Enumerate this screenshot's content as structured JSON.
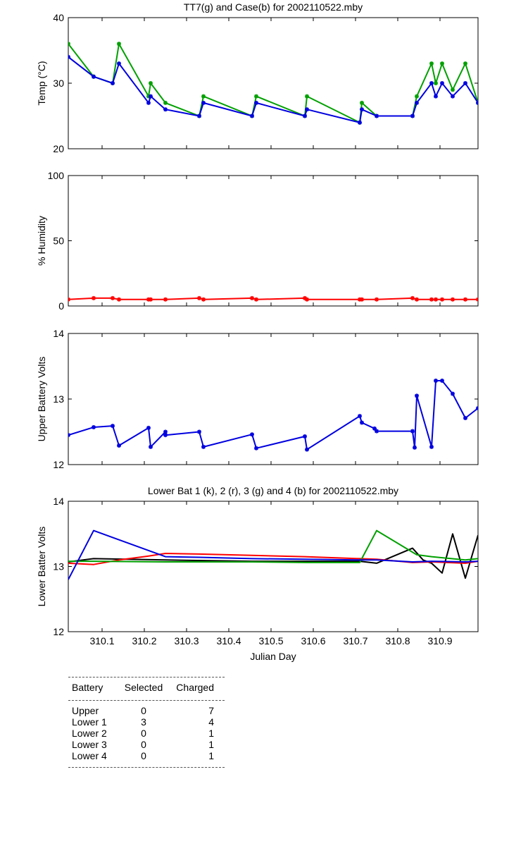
{
  "chart_data": [
    {
      "type": "line",
      "title": "TT7(g) and Case(b) for 2002110522.mby",
      "xlabel": "",
      "ylabel": "Temp  (°C)",
      "xlim": [
        310.02,
        310.99
      ],
      "ylim": [
        20,
        40
      ],
      "yticks": [
        "20",
        "30",
        "40"
      ],
      "grid": false,
      "series": [
        {
          "color": "#00a000",
          "marker": true,
          "x": [
            310.02,
            310.08,
            310.125,
            310.14,
            310.21,
            310.215,
            310.25,
            310.33,
            310.34,
            310.455,
            310.465,
            310.58,
            310.585,
            310.71,
            310.715,
            310.75,
            310.835,
            310.845,
            310.88,
            310.89,
            310.905,
            310.93,
            310.96,
            310.99
          ],
          "y": [
            36,
            31,
            30,
            36,
            28,
            30,
            27,
            25,
            28,
            25,
            28,
            25,
            28,
            24,
            27,
            25,
            25,
            28,
            33,
            30,
            33,
            29,
            33,
            27
          ]
        },
        {
          "color": "#0000e0",
          "marker": true,
          "x": [
            310.02,
            310.08,
            310.125,
            310.14,
            310.21,
            310.215,
            310.25,
            310.33,
            310.34,
            310.455,
            310.465,
            310.58,
            310.585,
            310.71,
            310.715,
            310.75,
            310.835,
            310.845,
            310.88,
            310.89,
            310.905,
            310.93,
            310.96,
            310.99
          ],
          "y": [
            34,
            31,
            30,
            33,
            27,
            28,
            26,
            25,
            27,
            25,
            27,
            25,
            26,
            24,
            26,
            25,
            25,
            27,
            30,
            28,
            30,
            28,
            30,
            27
          ]
        }
      ]
    },
    {
      "type": "line",
      "title": "",
      "xlabel": "",
      "ylabel": "% Humidity",
      "xlim": [
        310.02,
        310.99
      ],
      "ylim": [
        0,
        100
      ],
      "yticks": [
        "0",
        "50",
        "100"
      ],
      "grid": false,
      "series": [
        {
          "color": "#ff0000",
          "marker": true,
          "x": [
            310.02,
            310.08,
            310.125,
            310.14,
            310.21,
            310.215,
            310.25,
            310.33,
            310.34,
            310.455,
            310.465,
            310.58,
            310.585,
            310.71,
            310.715,
            310.75,
            310.835,
            310.845,
            310.88,
            310.89,
            310.905,
            310.93,
            310.96,
            310.99
          ],
          "y": [
            5,
            6,
            6,
            5,
            5,
            5,
            5,
            6,
            5,
            6,
            5,
            6,
            5,
            5,
            5,
            5,
            6,
            5,
            5,
            5,
            5,
            5,
            5,
            5
          ]
        }
      ]
    },
    {
      "type": "line",
      "title": "",
      "xlabel": "",
      "ylabel": "Upper Battery Volts",
      "xlim": [
        310.02,
        310.99
      ],
      "ylim": [
        12,
        14
      ],
      "yticks": [
        "12",
        "13",
        "14"
      ],
      "grid": false,
      "series": [
        {
          "color": "#0000e0",
          "marker": true,
          "x": [
            310.02,
            310.08,
            310.125,
            310.14,
            310.21,
            310.215,
            310.25,
            310.25,
            310.33,
            310.34,
            310.455,
            310.465,
            310.58,
            310.585,
            310.71,
            310.715,
            310.745,
            310.75,
            310.835,
            310.84,
            310.845,
            310.88,
            310.89,
            310.905,
            310.93,
            310.96,
            310.99
          ],
          "y": [
            12.45,
            12.57,
            12.59,
            12.29,
            12.56,
            12.27,
            12.5,
            12.45,
            12.5,
            12.27,
            12.46,
            12.25,
            12.43,
            12.23,
            12.74,
            12.64,
            12.55,
            12.51,
            12.51,
            12.26,
            13.05,
            12.27,
            13.28,
            13.28,
            13.08,
            12.71,
            12.86
          ]
        }
      ]
    },
    {
      "type": "line",
      "title": "Lower Bat 1 (k), 2 (r), 3 (g) and 4 (b) for 2002110522.mby",
      "xlabel": "Julian Day",
      "ylabel": "Lower Batter Volts",
      "xlim": [
        310.02,
        310.99
      ],
      "ylim": [
        12,
        14
      ],
      "yticks": [
        "12",
        "13",
        "14"
      ],
      "xticks": [
        310.1,
        310.2,
        310.3,
        310.4,
        310.5,
        310.6,
        310.7,
        310.8,
        310.9
      ],
      "xticklabels": [
        "310.1",
        "310.2",
        "310.3",
        "310.4",
        "310.5",
        "310.6",
        "310.7",
        "310.8",
        "310.9"
      ],
      "grid": false,
      "series": [
        {
          "color": "#000000",
          "marker": false,
          "x": [
            310.02,
            310.08,
            310.25,
            310.455,
            310.585,
            310.71,
            310.75,
            310.835,
            310.86,
            310.88,
            310.905,
            310.93,
            310.96,
            310.99
          ],
          "y": [
            13.07,
            13.12,
            13.1,
            13.08,
            13.08,
            13.08,
            13.05,
            13.28,
            13.1,
            13.05,
            12.9,
            13.5,
            12.82,
            13.48
          ]
        },
        {
          "color": "#ff0000",
          "marker": false,
          "x": [
            310.02,
            310.08,
            310.14,
            310.21,
            310.25,
            310.33,
            310.455,
            310.58,
            310.71,
            310.75,
            310.835,
            310.88,
            310.96,
            310.99
          ],
          "y": [
            13.05,
            13.03,
            13.1,
            13.16,
            13.2,
            13.19,
            13.17,
            13.15,
            13.12,
            13.11,
            13.06,
            13.07,
            13.05,
            13.08
          ]
        },
        {
          "color": "#00a000",
          "marker": false,
          "x": [
            310.02,
            310.08,
            310.25,
            310.455,
            310.585,
            310.71,
            310.75,
            310.845,
            310.88,
            310.96,
            310.99
          ],
          "y": [
            13.08,
            13.08,
            13.07,
            13.07,
            13.06,
            13.06,
            13.55,
            13.18,
            13.15,
            13.1,
            13.12
          ]
        },
        {
          "color": "#0000e0",
          "marker": false,
          "x": [
            310.02,
            310.08,
            310.25,
            310.33,
            310.455,
            310.58,
            310.71,
            310.75,
            310.835,
            310.88,
            310.96,
            310.99
          ],
          "y": [
            12.8,
            13.55,
            13.15,
            13.14,
            13.12,
            13.11,
            13.1,
            13.1,
            13.07,
            13.08,
            13.07,
            13.08
          ]
        }
      ]
    }
  ],
  "summary_table": {
    "headers": [
      "Battery",
      "Selected",
      "Charged"
    ],
    "rows": [
      [
        "Upper",
        "0",
        "7"
      ],
      [
        "Lower 1",
        "3",
        "4"
      ],
      [
        "Lower 2",
        "0",
        "1"
      ],
      [
        "Lower 3",
        "0",
        "1"
      ],
      [
        "Lower 4",
        "0",
        "1"
      ]
    ]
  }
}
